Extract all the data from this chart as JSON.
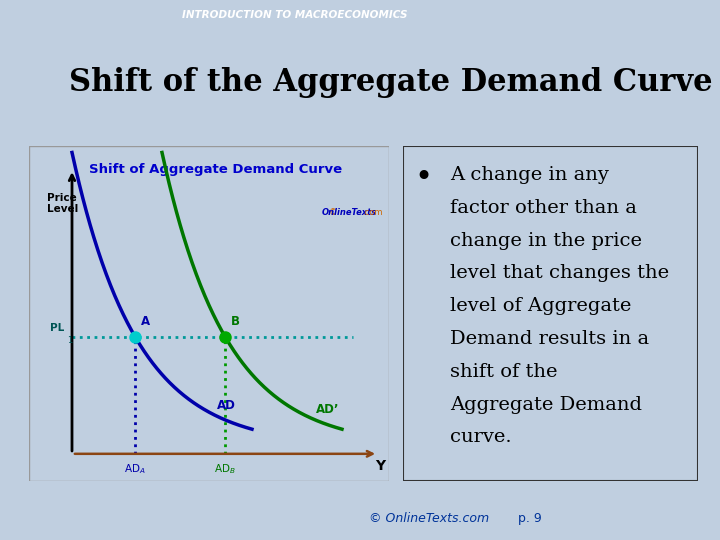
{
  "title": "Shift of the Aggregate Demand Curve",
  "header_text": "INTRODUCTION TO MACROECONOMICS",
  "slide_bg": "#c0cfe0",
  "title_bg": "#ffffff",
  "chart_title": "Shift of Aggregate Demand Curve",
  "chart_title_color": "#0000cc",
  "chart_bg": "#f0f4fa",
  "bullet_lines": [
    "A change in any",
    "factor other than a",
    "change in the price",
    "level that changes the",
    "level of Aggregate",
    "Demand results in a",
    "shift of the",
    "Aggregate Demand",
    "curve."
  ],
  "footer_left": "© OnlineTexts.com",
  "footer_right": "p. 9",
  "ad_label": "AD",
  "adp_label": "AD’",
  "pl_label": "PL",
  "ada_label": "ADA",
  "adb_label": "ADB",
  "y_label": "Y",
  "price_label": "Price\nLevel",
  "point_a_label": "A",
  "point_b_label": "B",
  "ad_curve_color": "#0000aa",
  "adp_curve_color": "#007700",
  "point_color_a": "#00cccc",
  "point_color_b": "#00aa00",
  "dotted_h_color": "#009999",
  "dotted_va_color": "#0000aa",
  "dotted_vb_color": "#009900",
  "copyright_color": "#cc6600"
}
